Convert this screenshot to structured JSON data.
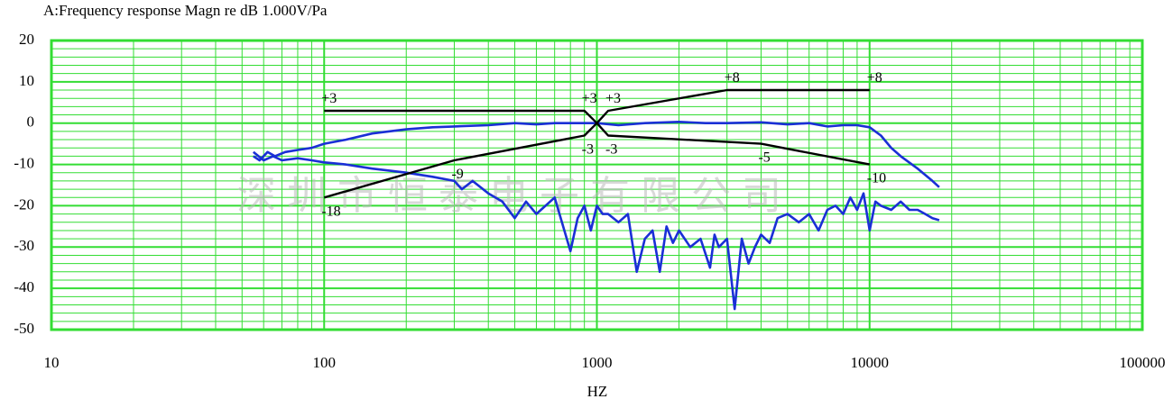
{
  "title": "A:Frequency response Magn re dB 1.000V/Pa",
  "watermark_text": "深圳市恒泰电子有限公司",
  "colors": {
    "grid": "#33dd33",
    "series": "#1a2fd6",
    "limits": "#000000",
    "background": "#ffffff"
  },
  "chart_data": {
    "type": "line",
    "xscale": "log",
    "xlim": [
      10,
      100000
    ],
    "ylim": [
      -50,
      20
    ],
    "xlabel": "HZ",
    "ylabel": "",
    "x_ticks": [
      10,
      100,
      1000,
      10000,
      100000
    ],
    "x_tick_labels": [
      "10",
      "100",
      "1000",
      "10000",
      "100000"
    ],
    "y_ticks": [
      20,
      10,
      0,
      -10,
      -20,
      -30,
      -40,
      -50
    ],
    "y_tick_labels": [
      "20",
      "10",
      "0",
      "-10",
      "-20",
      "-30",
      "-40",
      "-50"
    ],
    "grid": true,
    "series": [
      {
        "role": "response-on-axis",
        "x": [
          55,
          58,
          62,
          66,
          72,
          80,
          90,
          100,
          120,
          150,
          200,
          250,
          300,
          400,
          500,
          600,
          700,
          800,
          1000,
          1200,
          1500,
          2000,
          2500,
          3000,
          4000,
          5000,
          6000,
          7000,
          8000,
          9000,
          10000,
          11000,
          12000,
          13000,
          15000,
          17000,
          18000
        ],
        "y": [
          -8,
          -9,
          -7,
          -8,
          -7,
          -6.5,
          -6,
          -5,
          -4,
          -2.5,
          -1.5,
          -1,
          -0.8,
          -0.5,
          0,
          -0.3,
          0,
          0,
          0,
          -0.5,
          0,
          0.3,
          0,
          0,
          0.2,
          -0.3,
          0,
          -0.8,
          -0.5,
          -0.5,
          -1,
          -3,
          -6,
          -8,
          -11,
          -14,
          -15.5
        ]
      },
      {
        "role": "response-off-axis",
        "x": [
          55,
          60,
          65,
          70,
          80,
          90,
          100,
          120,
          150,
          200,
          250,
          300,
          320,
          350,
          400,
          450,
          500,
          550,
          600,
          700,
          800,
          850,
          900,
          950,
          1000,
          1050,
          1100,
          1200,
          1300,
          1400,
          1500,
          1600,
          1700,
          1800,
          1900,
          2000,
          2200,
          2400,
          2600,
          2700,
          2800,
          3000,
          3200,
          3400,
          3600,
          3800,
          4000,
          4300,
          4600,
          5000,
          5500,
          6000,
          6500,
          7000,
          7500,
          8000,
          8500,
          9000,
          9500,
          10000,
          10500,
          11000,
          12000,
          13000,
          14000,
          15000,
          16000,
          17000,
          18000
        ],
        "y": [
          -7,
          -9,
          -8,
          -9,
          -8.5,
          -9,
          -9.5,
          -10,
          -11,
          -12,
          -13,
          -14,
          -16,
          -14,
          -17,
          -19,
          -23,
          -19,
          -22,
          -18,
          -31,
          -23,
          -20,
          -26,
          -20,
          -22,
          -22,
          -24,
          -22,
          -36,
          -28,
          -26,
          -36,
          -25,
          -29,
          -26,
          -30,
          -28,
          -35,
          -27,
          -30,
          -28,
          -45,
          -28,
          -34,
          -30,
          -27,
          -29,
          -23,
          -22,
          -24,
          -22,
          -26,
          -21,
          -20,
          -22,
          -18,
          -21,
          -17,
          -26,
          -19,
          -20,
          -21,
          -19,
          -21,
          -21,
          -22,
          -23,
          -23.5
        ]
      },
      {
        "role": "upper-limit",
        "x": [
          100,
          900,
          1000,
          1100,
          3000,
          10000
        ],
        "y": [
          3,
          3,
          0,
          3,
          8,
          8
        ]
      },
      {
        "role": "lower-limit",
        "x": [
          100,
          300,
          900,
          1000,
          1100,
          4000,
          10000
        ],
        "y": [
          -18,
          -9,
          -3,
          0,
          -3,
          -5,
          -10
        ]
      }
    ],
    "annotations": [
      {
        "text": "+3",
        "x": 100,
        "y": 3,
        "pos": "above"
      },
      {
        "text": "+3",
        "x": 900,
        "y": 3,
        "pos": "above"
      },
      {
        "text": "+3",
        "x": 1100,
        "y": 3,
        "pos": "above"
      },
      {
        "text": "+8",
        "x": 3000,
        "y": 8,
        "pos": "above"
      },
      {
        "text": "+8",
        "x": 10000,
        "y": 8,
        "pos": "above"
      },
      {
        "text": "-3",
        "x": 900,
        "y": -3,
        "pos": "below"
      },
      {
        "text": "-3",
        "x": 1100,
        "y": -3,
        "pos": "below"
      },
      {
        "text": "-5",
        "x": 4000,
        "y": -5,
        "pos": "below"
      },
      {
        "text": "-9",
        "x": 300,
        "y": -9,
        "pos": "below"
      },
      {
        "text": "-10",
        "x": 10000,
        "y": -10,
        "pos": "below"
      },
      {
        "text": "-18",
        "x": 100,
        "y": -18,
        "pos": "below"
      }
    ]
  }
}
